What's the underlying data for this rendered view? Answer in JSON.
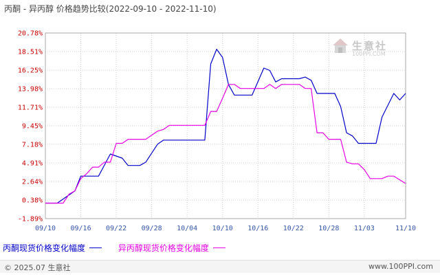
{
  "title": "丙酮 - 异丙醇 价格趋势比较(2022-09-10 - 2022-11-10)",
  "watermark": {
    "name": "生意社",
    "url": "100PPI.COM"
  },
  "footer": {
    "copyright": "© 2025.07 生意社",
    "site": "www.100PPI.com"
  },
  "colors": {
    "series1": "#0000cc",
    "series2": "#e600e6",
    "grid": "#cccccc",
    "ytick": "#cc0000",
    "xtick": "#3355aa"
  },
  "chart_data": {
    "type": "line",
    "title": "丙酮 - 异丙醇 价格趋势比较(2022-09-10 - 2022-11-10)",
    "xlabel": "",
    "ylabel": "",
    "yticks": [
      "20.78%",
      "18.51%",
      "16.25%",
      "13.98%",
      "11.71%",
      "9.45%",
      "7.18%",
      "4.91%",
      "2.64%",
      "0.38%",
      "-1.89%"
    ],
    "ylim": [
      -1.89,
      20.78
    ],
    "xticks": [
      "09/10",
      "09/16",
      "09/22",
      "09/28",
      "10/04",
      "10/10",
      "10/16",
      "10/22",
      "10/28",
      "11/03",
      "11/10"
    ],
    "xlim": [
      "2022-09-10",
      "2022-11-10"
    ],
    "grid": true,
    "legend": "bottom",
    "series": [
      {
        "name": "丙酮现货价格变化幅度",
        "points": [
          [
            "2022-09-10",
            0.0
          ],
          [
            "2022-09-12",
            0.0
          ],
          [
            "2022-09-15",
            1.5
          ],
          [
            "2022-09-16",
            3.3
          ],
          [
            "2022-09-19",
            3.3
          ],
          [
            "2022-09-21",
            6.0
          ],
          [
            "2022-09-23",
            5.5
          ],
          [
            "2022-09-24",
            4.6
          ],
          [
            "2022-09-26",
            4.6
          ],
          [
            "2022-09-27",
            5.0
          ],
          [
            "2022-09-29",
            7.2
          ],
          [
            "2022-09-30",
            7.7
          ],
          [
            "2022-10-07",
            7.7
          ],
          [
            "2022-10-08",
            17.0
          ],
          [
            "2022-10-09",
            18.8
          ],
          [
            "2022-10-10",
            17.8
          ],
          [
            "2022-10-11",
            14.5
          ],
          [
            "2022-10-12",
            13.2
          ],
          [
            "2022-10-15",
            13.2
          ],
          [
            "2022-10-17",
            16.5
          ],
          [
            "2022-10-18",
            16.2
          ],
          [
            "2022-10-19",
            14.8
          ],
          [
            "2022-10-20",
            15.2
          ],
          [
            "2022-10-23",
            15.2
          ],
          [
            "2022-10-24",
            15.4
          ],
          [
            "2022-10-25",
            15.0
          ],
          [
            "2022-10-26",
            13.4
          ],
          [
            "2022-10-29",
            13.4
          ],
          [
            "2022-10-30",
            11.8
          ],
          [
            "2022-10-31",
            8.6
          ],
          [
            "2022-11-01",
            8.2
          ],
          [
            "2022-11-02",
            7.3
          ],
          [
            "2022-11-05",
            7.3
          ],
          [
            "2022-11-06",
            10.5
          ],
          [
            "2022-11-08",
            13.4
          ],
          [
            "2022-11-09",
            12.6
          ],
          [
            "2022-11-10",
            13.4
          ]
        ]
      },
      {
        "name": "异丙醇现货价格变化幅度",
        "points": [
          [
            "2022-09-10",
            0.0
          ],
          [
            "2022-09-13",
            0.0
          ],
          [
            "2022-09-14",
            1.1
          ],
          [
            "2022-09-15",
            1.5
          ],
          [
            "2022-09-16",
            3.0
          ],
          [
            "2022-09-17",
            3.6
          ],
          [
            "2022-09-18",
            4.4
          ],
          [
            "2022-09-19",
            4.4
          ],
          [
            "2022-09-20",
            5.0
          ],
          [
            "2022-09-21",
            5.0
          ],
          [
            "2022-09-22",
            7.3
          ],
          [
            "2022-09-23",
            7.3
          ],
          [
            "2022-09-24",
            7.8
          ],
          [
            "2022-09-27",
            7.8
          ],
          [
            "2022-09-29",
            8.8
          ],
          [
            "2022-09-30",
            9.0
          ],
          [
            "2022-10-01",
            9.5
          ],
          [
            "2022-10-07",
            9.5
          ],
          [
            "2022-10-08",
            11.2
          ],
          [
            "2022-10-09",
            11.2
          ],
          [
            "2022-10-10",
            12.8
          ],
          [
            "2022-10-11",
            14.5
          ],
          [
            "2022-10-12",
            14.5
          ],
          [
            "2022-10-13",
            14.0
          ],
          [
            "2022-10-17",
            14.0
          ],
          [
            "2022-10-18",
            14.5
          ],
          [
            "2022-10-19",
            14.0
          ],
          [
            "2022-10-20",
            14.5
          ],
          [
            "2022-10-23",
            14.5
          ],
          [
            "2022-10-24",
            14.0
          ],
          [
            "2022-10-25",
            14.0
          ],
          [
            "2022-10-26",
            8.6
          ],
          [
            "2022-10-27",
            8.6
          ],
          [
            "2022-10-28",
            7.8
          ],
          [
            "2022-10-30",
            7.8
          ],
          [
            "2022-10-31",
            5.0
          ],
          [
            "2022-11-01",
            4.8
          ],
          [
            "2022-11-02",
            4.8
          ],
          [
            "2022-11-03",
            4.1
          ],
          [
            "2022-11-04",
            3.0
          ],
          [
            "2022-11-06",
            3.0
          ],
          [
            "2022-11-07",
            3.3
          ],
          [
            "2022-11-08",
            3.3
          ],
          [
            "2022-11-10",
            2.4
          ]
        ]
      }
    ]
  }
}
